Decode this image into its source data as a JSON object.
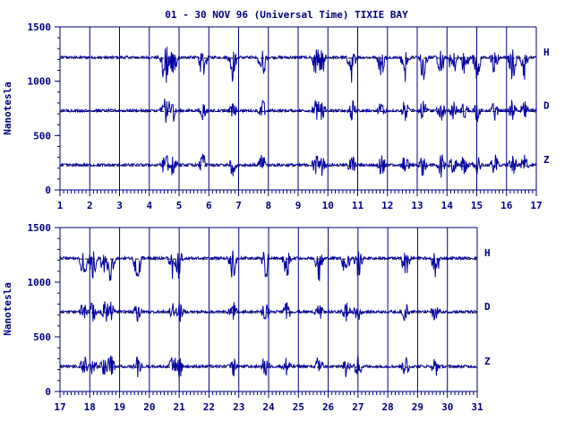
{
  "chart_data": [
    {
      "type": "line",
      "title": "01 - 30 NOV 96 (Universal Time) TIXIE BAY",
      "ylabel": "Nanotesla",
      "xlim": [
        1,
        17
      ],
      "ylim": [
        0,
        1500
      ],
      "yticks": [
        "0",
        "500",
        "1000",
        "1500"
      ],
      "xticks": [
        "1",
        "2",
        "3",
        "4",
        "5",
        "6",
        "7",
        "8",
        "9",
        "10",
        "11",
        "12",
        "13",
        "14",
        "15",
        "16",
        "17"
      ],
      "grid": "vertical-day-lines",
      "series": [
        {
          "name": "H",
          "baseline": 1220
        },
        {
          "name": "D",
          "baseline": 730
        },
        {
          "name": "Z",
          "baseline": 230
        }
      ]
    },
    {
      "type": "line",
      "title": "",
      "ylabel": "Nanotesla",
      "xlim": [
        17,
        31
      ],
      "ylim": [
        0,
        1500
      ],
      "yticks": [
        "0",
        "500",
        "1000",
        "1500"
      ],
      "xticks": [
        "17",
        "18",
        "19",
        "20",
        "21",
        "22",
        "23",
        "24",
        "25",
        "26",
        "27",
        "28",
        "29",
        "30",
        "31"
      ],
      "grid": "vertical-day-lines",
      "series": [
        {
          "name": "H",
          "baseline": 1220
        },
        {
          "name": "D",
          "baseline": 730
        },
        {
          "name": "Z",
          "baseline": 230
        }
      ]
    }
  ],
  "colors": {
    "ink": "#000080",
    "trace": "#0000a0",
    "reference": "#000000"
  }
}
